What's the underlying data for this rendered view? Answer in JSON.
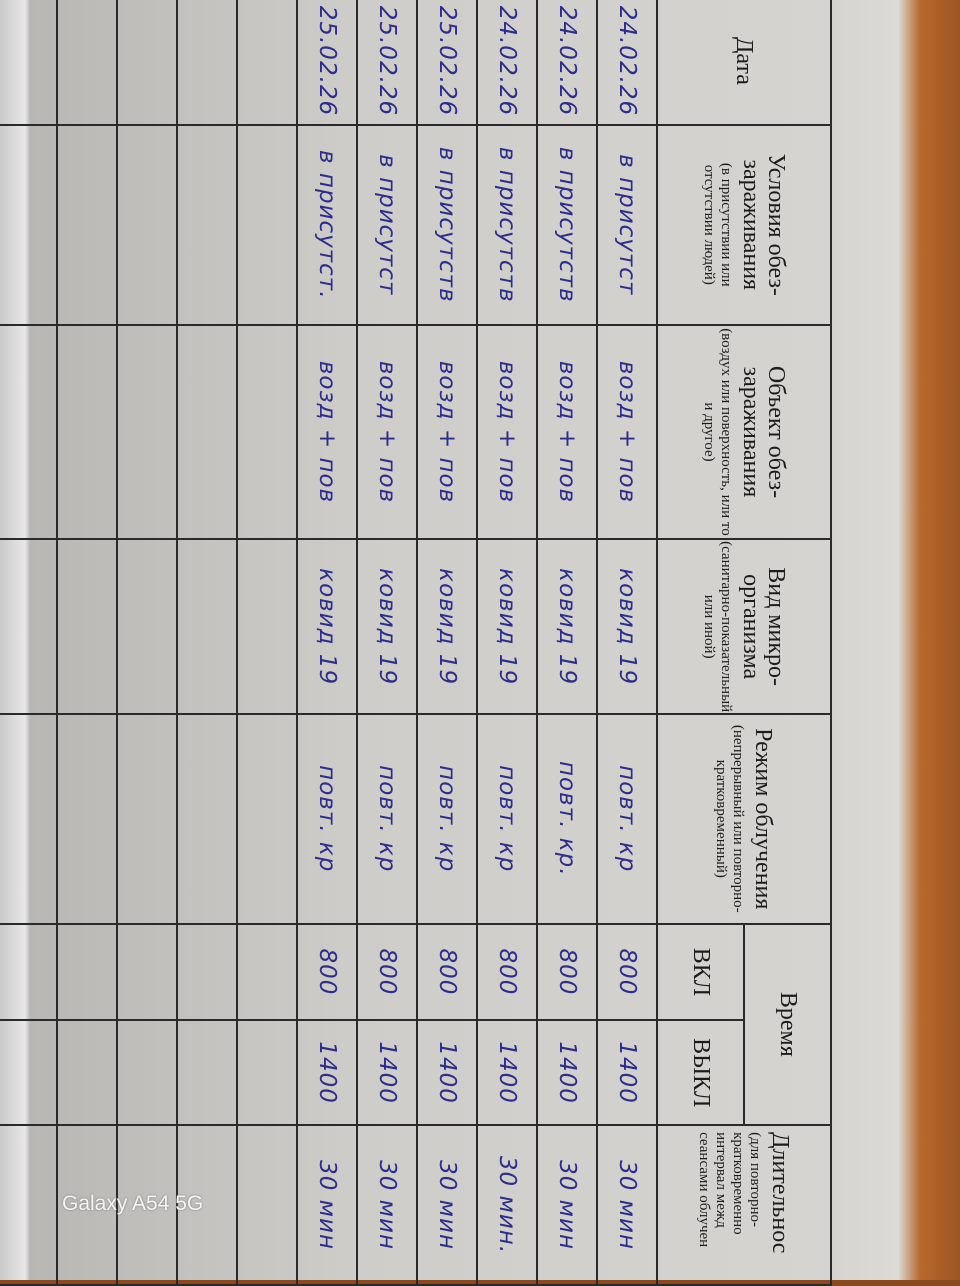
{
  "header": {
    "date": "Дата",
    "conditions": {
      "title": "Условия обез-зараживания",
      "note": "(в присутствии или отсутствии людей)"
    },
    "object": {
      "title": "Объект обез-зараживания",
      "note": "(воздух или поверхность, или то и другое)"
    },
    "microorganism": {
      "title": "Вид микро-организма",
      "note": "(санитарно-показательный или иной)"
    },
    "mode": {
      "title": "Режим облучения",
      "note": "(непрерывный или повторно-кратковременный)"
    },
    "time": {
      "title": "Время",
      "on": "ВКЛ",
      "off": "ВЫКЛ"
    },
    "duration": {
      "title": "Длительнос",
      "note": "(для повторно-кратковременно интервал межд сеансами облучен"
    }
  },
  "rows": [
    {
      "date": "24.02.26",
      "conditions": "в присутст",
      "object": "возд + пов",
      "microorganism": "ковид 19",
      "mode": "повт. кр",
      "on": "800",
      "off": "1400",
      "duration": "30 мин"
    },
    {
      "date": "24.02.26",
      "conditions": "в присутств",
      "object": "возд + пов",
      "microorganism": "ковид 19",
      "mode": "повт. кр.",
      "on": "800",
      "off": "1400",
      "duration": "30 мин"
    },
    {
      "date": "24.02.26",
      "conditions": "в присутств",
      "object": "возд + пов",
      "microorganism": "ковид 19",
      "mode": "повт. кр",
      "on": "800",
      "off": "1400",
      "duration": "30 мин."
    },
    {
      "date": "25.02.26",
      "conditions": "в присутств",
      "object": "возд + пов",
      "microorganism": "ковид 19",
      "mode": "повт. кр",
      "on": "800",
      "off": "1400",
      "duration": "30 мин"
    },
    {
      "date": "25.02.26",
      "conditions": "в присутст",
      "object": "возд + пов",
      "microorganism": "ковид 19",
      "mode": "повт. кр",
      "on": "800",
      "off": "1400",
      "duration": "30 мин"
    },
    {
      "date": "25.02.26",
      "conditions": "в присутст.",
      "object": "возд + пов",
      "microorganism": "ковид 19",
      "mode": "повт. кр",
      "on": "800",
      "off": "1400",
      "duration": "30 мин"
    }
  ],
  "watermark": "Galaxy A54 5G"
}
